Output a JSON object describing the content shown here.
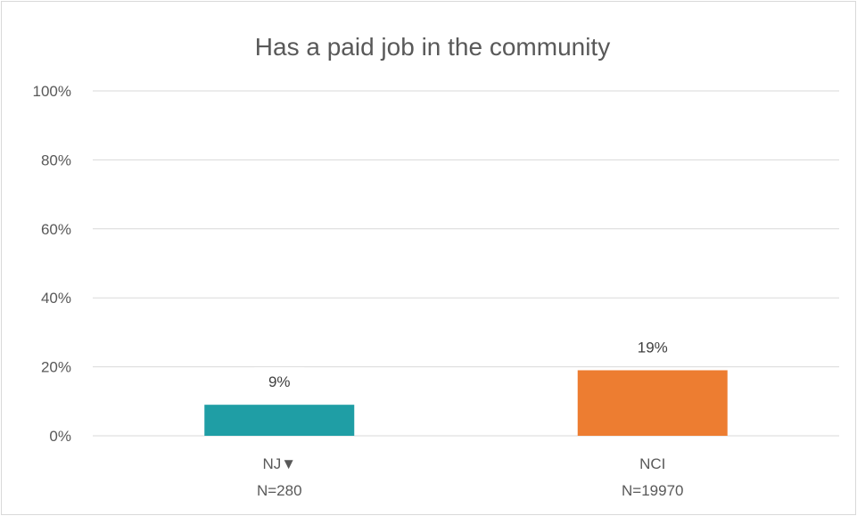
{
  "chart_data": {
    "type": "bar",
    "title": "Has a paid job in the community",
    "xlabel": "",
    "ylabel": "",
    "ylim": [
      0,
      100
    ],
    "y_ticks": [
      "0%",
      "20%",
      "40%",
      "60%",
      "80%",
      "100%"
    ],
    "grid": true,
    "legend": "none",
    "categories": [
      {
        "name": "NJ",
        "marker": "▼",
        "n_label": "N=280"
      },
      {
        "name": "NCI",
        "marker": "",
        "n_label": "N=19970"
      }
    ],
    "values": [
      9,
      19
    ],
    "data_labels": [
      "9%",
      "19%"
    ],
    "colors": [
      "#1f9ea5",
      "#ed7d31"
    ]
  }
}
